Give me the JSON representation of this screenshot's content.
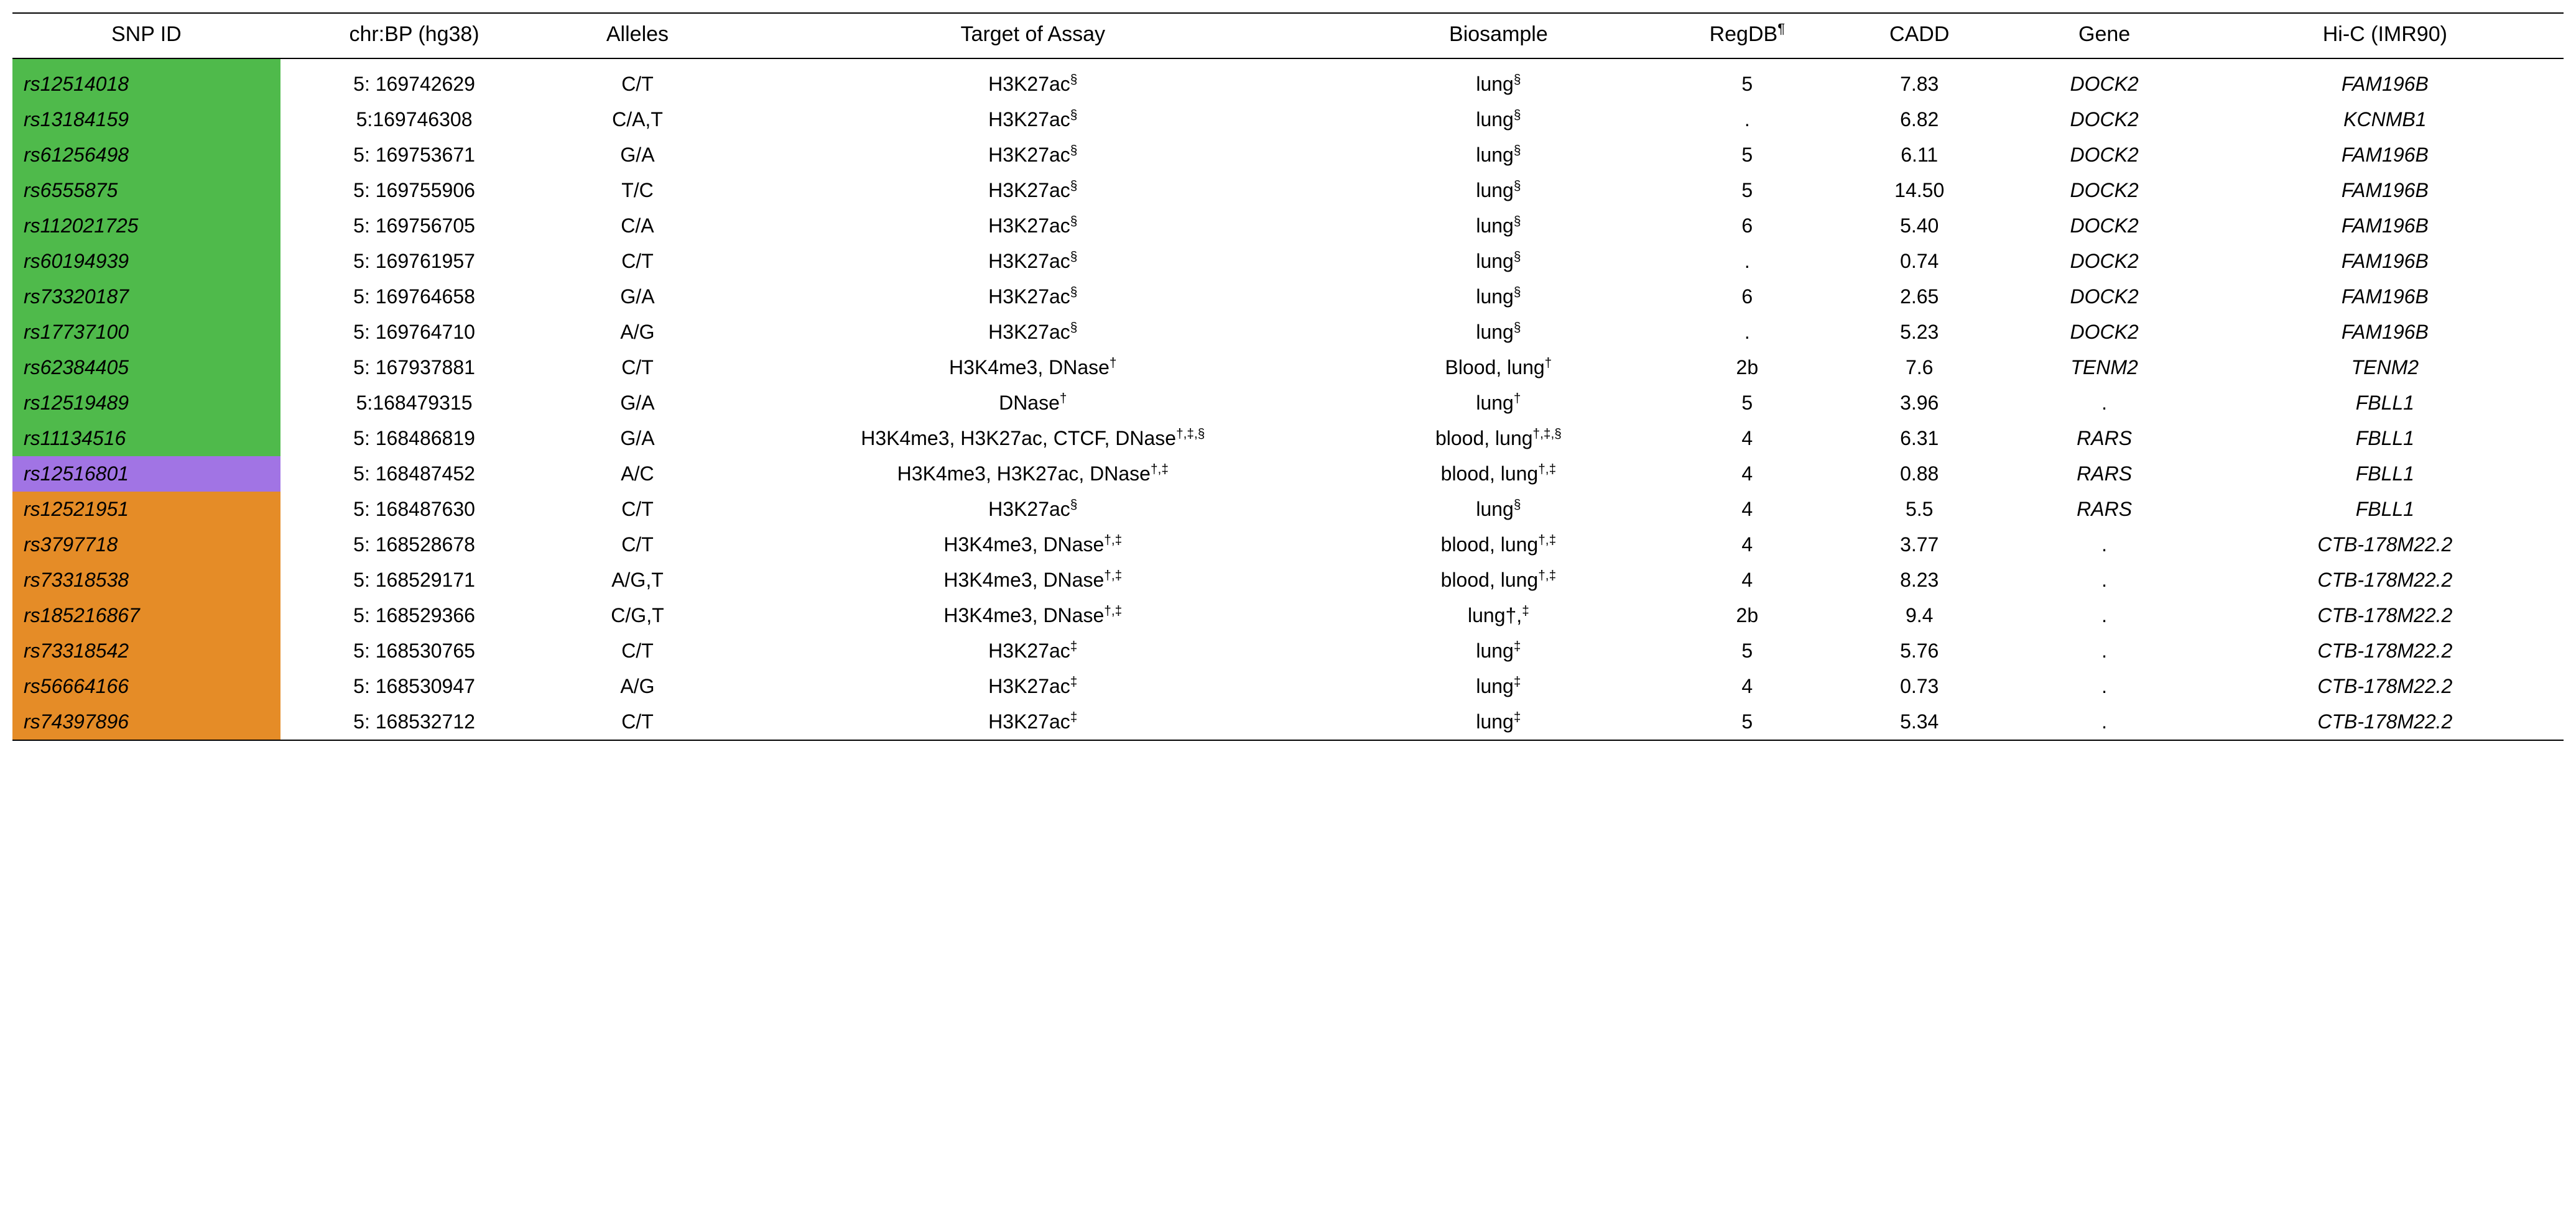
{
  "colors": {
    "green": "#4fba4b",
    "purple": "#a174e4",
    "orange": "#e58c27",
    "text": "#000000",
    "bg": "#ffffff",
    "rule": "#000000"
  },
  "typography": {
    "header_fontsize_pt": 26,
    "body_fontsize_pt": 24,
    "font_family": "Arial, Helvetica, sans-serif",
    "snp_italic": true,
    "gene_italic": true,
    "hic_italic": true
  },
  "table": {
    "type": "table",
    "columns": [
      {
        "key": "snp_id",
        "label": "SNP ID",
        "align": "left"
      },
      {
        "key": "chr_bp",
        "label": "chr:BP (hg38)",
        "align": "center"
      },
      {
        "key": "alleles",
        "label": "Alleles",
        "align": "center"
      },
      {
        "key": "target",
        "label": "Target of Assay",
        "align": "center"
      },
      {
        "key": "bio",
        "label": "Biosample",
        "align": "center"
      },
      {
        "key": "regdb",
        "label": "RegDB",
        "align": "center",
        "sup": "¶"
      },
      {
        "key": "cadd",
        "label": "CADD",
        "align": "center"
      },
      {
        "key": "gene",
        "label": "Gene",
        "align": "center"
      },
      {
        "key": "hic",
        "label": "Hi-C (IMR90)",
        "align": "center"
      }
    ],
    "rows": [
      {
        "snp_id": "rs12514018",
        "snp_color": "green",
        "chr_bp": "5: 169742629",
        "alleles": "C/T",
        "target": "H3K27ac",
        "target_sup": "§",
        "bio": "lung",
        "bio_sup": "§",
        "regdb": "5",
        "cadd": "7.83",
        "gene": "DOCK2",
        "hic": "FAM196B"
      },
      {
        "snp_id": "rs13184159",
        "snp_color": "green",
        "chr_bp": "5:169746308",
        "alleles": "C/A,T",
        "target": "H3K27ac",
        "target_sup": "§",
        "bio": "lung",
        "bio_sup": "§",
        "regdb": ".",
        "cadd": "6.82",
        "gene": "DOCK2",
        "hic": "KCNMB1"
      },
      {
        "snp_id": "rs61256498",
        "snp_color": "green",
        "chr_bp": "5: 169753671",
        "alleles": "G/A",
        "target": "H3K27ac",
        "target_sup": "§",
        "bio": "lung",
        "bio_sup": "§",
        "regdb": "5",
        "cadd": "6.11",
        "gene": "DOCK2",
        "hic": "FAM196B"
      },
      {
        "snp_id": "rs6555875",
        "snp_color": "green",
        "chr_bp": "5: 169755906",
        "alleles": "T/C",
        "target": "H3K27ac",
        "target_sup": "§",
        "bio": "lung",
        "bio_sup": "§",
        "regdb": "5",
        "cadd": "14.50",
        "gene": "DOCK2",
        "hic": "FAM196B"
      },
      {
        "snp_id": "rs112021725",
        "snp_color": "green",
        "chr_bp": "5: 169756705",
        "alleles": "C/A",
        "target": "H3K27ac",
        "target_sup": "§",
        "bio": "lung",
        "bio_sup": "§",
        "regdb": "6",
        "cadd": "5.40",
        "gene": "DOCK2",
        "hic": "FAM196B"
      },
      {
        "snp_id": "rs60194939",
        "snp_color": "green",
        "chr_bp": "5: 169761957",
        "alleles": "C/T",
        "target": "H3K27ac",
        "target_sup": "§",
        "bio": "lung",
        "bio_sup": "§",
        "regdb": ".",
        "cadd": "0.74",
        "gene": "DOCK2",
        "hic": "FAM196B"
      },
      {
        "snp_id": "rs73320187",
        "snp_color": "green",
        "chr_bp": "5: 169764658",
        "alleles": "G/A",
        "target": "H3K27ac",
        "target_sup": "§",
        "bio": "lung",
        "bio_sup": "§",
        "regdb": "6",
        "cadd": "2.65",
        "gene": "DOCK2",
        "hic": "FAM196B"
      },
      {
        "snp_id": "rs17737100",
        "snp_color": "green",
        "chr_bp": "5: 169764710",
        "alleles": "A/G",
        "target": "H3K27ac",
        "target_sup": "§",
        "bio": "lung",
        "bio_sup": "§",
        "regdb": ".",
        "cadd": "5.23",
        "gene": "DOCK2",
        "hic": "FAM196B"
      },
      {
        "snp_id": "rs62384405",
        "snp_color": "green",
        "chr_bp": "5: 167937881",
        "alleles": "C/T",
        "target": "H3K4me3, DNase",
        "target_sup": "†",
        "bio": "Blood, lung",
        "bio_sup": "†",
        "regdb": "2b",
        "cadd": "7.6",
        "gene": "TENM2",
        "hic": "TENM2"
      },
      {
        "snp_id": "rs12519489",
        "snp_color": "green",
        "chr_bp": "5:168479315",
        "alleles": "G/A",
        "target": "DNase",
        "target_sup": "†",
        "bio": "lung",
        "bio_sup": "†",
        "regdb": "5",
        "cadd": "3.96",
        "gene": ".",
        "hic": "FBLL1"
      },
      {
        "snp_id": "rs11134516",
        "snp_color": "green",
        "chr_bp": "5: 168486819",
        "alleles": "G/A",
        "target": "H3K4me3, H3K27ac, CTCF, DNase",
        "target_sup": "†,‡,§",
        "bio": "blood, lung",
        "bio_sup": "†,‡,§",
        "regdb": "4",
        "cadd": "6.31",
        "gene": "RARS",
        "hic": "FBLL1"
      },
      {
        "snp_id": "rs12516801",
        "snp_color": "purple",
        "chr_bp": "5: 168487452",
        "alleles": "A/C",
        "target": "H3K4me3, H3K27ac, DNase",
        "target_sup": "†,‡",
        "bio": "blood, lung",
        "bio_sup": "†,‡",
        "regdb": "4",
        "cadd": "0.88",
        "gene": "RARS",
        "hic": "FBLL1"
      },
      {
        "snp_id": "rs12521951",
        "snp_color": "orange",
        "chr_bp": "5: 168487630",
        "alleles": "C/T",
        "target": "H3K27ac",
        "target_sup": "§",
        "bio": "lung",
        "bio_sup": "§",
        "regdb": "4",
        "cadd": "5.5",
        "gene": "RARS",
        "hic": "FBLL1"
      },
      {
        "snp_id": "rs3797718",
        "snp_color": "orange",
        "chr_bp": "5: 168528678",
        "alleles": "C/T",
        "target": "H3K4me3, DNase",
        "target_sup": "†,‡",
        "bio": "blood, lung",
        "bio_sup": "†,‡",
        "regdb": "4",
        "cadd": "3.77",
        "gene": ".",
        "hic": "CTB-178M22.2"
      },
      {
        "snp_id": "rs73318538",
        "snp_color": "orange",
        "chr_bp": "5: 168529171",
        "alleles": "A/G,T",
        "target": "H3K4me3, DNase",
        "target_sup": "†,‡",
        "bio": "blood, lung",
        "bio_sup": "†,‡",
        "regdb": "4",
        "cadd": "8.23",
        "gene": ".",
        "hic": "CTB-178M22.2"
      },
      {
        "snp_id": "rs185216867",
        "snp_color": "orange",
        "chr_bp": "5: 168529366",
        "alleles": "C/G,T",
        "target": "H3K4me3, DNase",
        "target_sup": "†,‡",
        "bio": "lung†,",
        "bio_sup": "‡",
        "regdb": "2b",
        "cadd": "9.4",
        "gene": ".",
        "hic": "CTB-178M22.2"
      },
      {
        "snp_id": "rs73318542",
        "snp_color": "orange",
        "chr_bp": "5: 168530765",
        "alleles": "C/T",
        "target": "H3K27ac",
        "target_sup": "‡",
        "bio": "lung",
        "bio_sup": "‡",
        "regdb": "5",
        "cadd": "5.76",
        "gene": ".",
        "hic": "CTB-178M22.2"
      },
      {
        "snp_id": "rs56664166",
        "snp_color": "orange",
        "chr_bp": "5: 168530947",
        "alleles": "A/G",
        "target": "H3K27ac",
        "target_sup": "‡",
        "bio": "lung",
        "bio_sup": "‡",
        "regdb": "4",
        "cadd": "0.73",
        "gene": ".",
        "hic": "CTB-178M22.2"
      },
      {
        "snp_id": "rs74397896",
        "snp_color": "orange",
        "chr_bp": "5: 168532712",
        "alleles": "C/T",
        "target": "H3K27ac",
        "target_sup": "‡",
        "bio": "lung",
        "bio_sup": "‡",
        "regdb": "5",
        "cadd": "5.34",
        "gene": ".",
        "hic": "CTB-178M22.2"
      }
    ]
  }
}
